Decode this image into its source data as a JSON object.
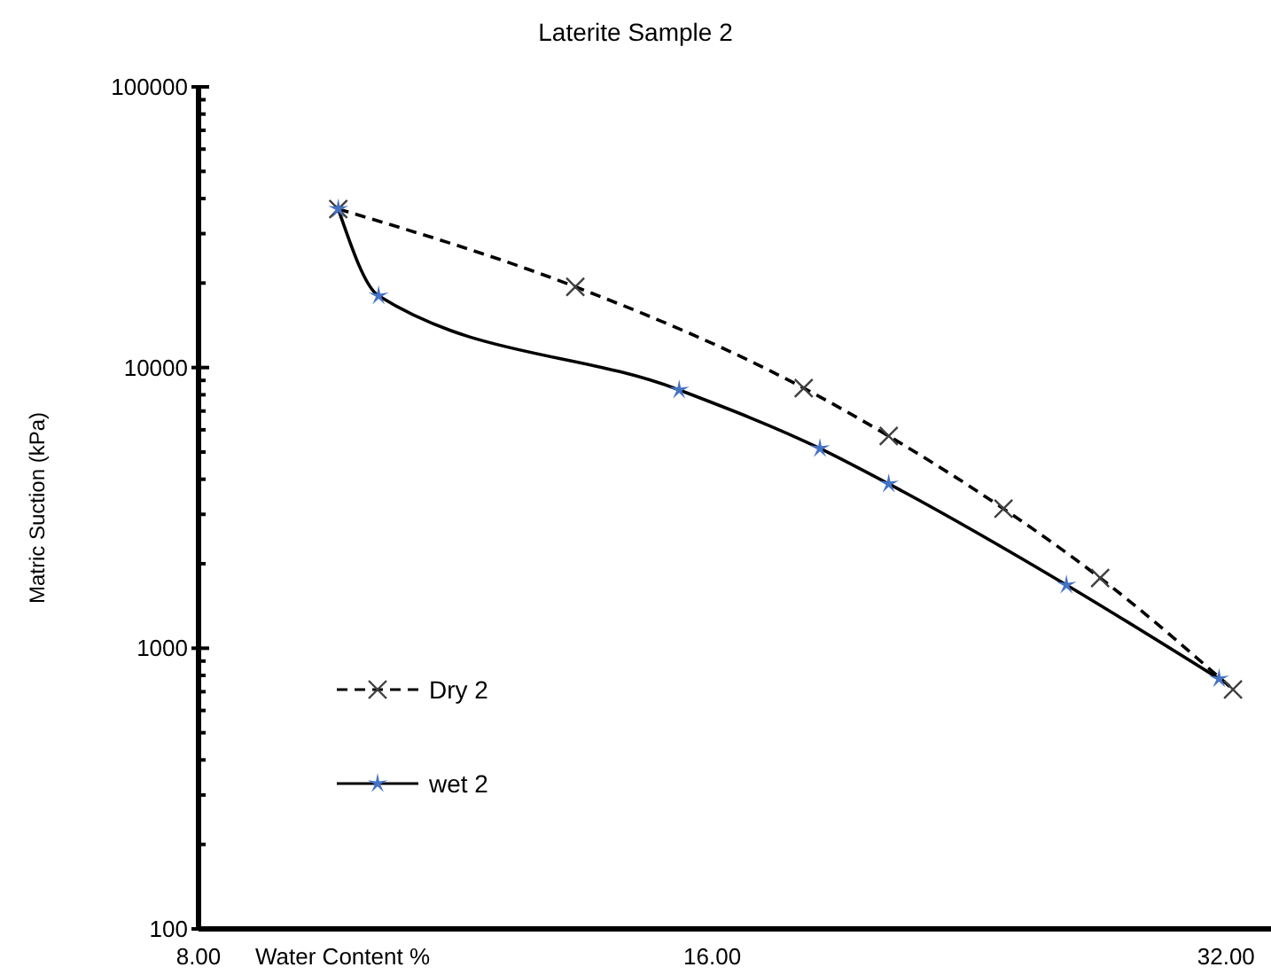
{
  "chart_data": {
    "type": "line",
    "title": "Laterite Sample 2",
    "xlabel": "Water Content %",
    "ylabel": "Matric Suction (kPa)",
    "log": "xy",
    "xlim": [
      8,
      34
    ],
    "xticks": [
      {
        "value": 8,
        "label": "8.00"
      },
      {
        "value": 16,
        "label": "16.00"
      },
      {
        "value": 32,
        "label": "32.00"
      }
    ],
    "ylim": [
      100,
      100000
    ],
    "yticks": [
      100,
      {
        "value": 200,
        "label": null
      },
      {
        "value": 300,
        "label": null
      },
      {
        "value": 400,
        "label": null
      },
      {
        "value": 500,
        "label": null
      },
      {
        "value": 600,
        "label": null
      },
      {
        "value": 700,
        "label": null
      },
      {
        "value": 800,
        "label": null
      },
      {
        "value": 900,
        "label": null
      },
      1000,
      {
        "value": 2000,
        "label": null
      },
      {
        "value": 3000,
        "label": null
      },
      {
        "value": 4000,
        "label": null
      },
      {
        "value": 5000,
        "label": null
      },
      {
        "value": 6000,
        "label": null
      },
      {
        "value": 7000,
        "label": null
      },
      {
        "value": 8000,
        "label": null
      },
      {
        "value": 9000,
        "label": null
      },
      10000,
      {
        "value": 20000,
        "label": null
      },
      {
        "value": 30000,
        "label": null
      },
      {
        "value": 40000,
        "label": null
      },
      {
        "value": 50000,
        "label": null
      },
      {
        "value": 60000,
        "label": null
      },
      {
        "value": 70000,
        "label": null
      },
      {
        "value": 80000,
        "label": null
      },
      {
        "value": 90000,
        "label": null
      },
      100000
    ],
    "grid": false,
    "legend": "bottom left",
    "series": [
      {
        "name": "Dry 2",
        "color": "#404040",
        "marker": "cross",
        "line_style": "dashed",
        "x": [
          9.66,
          13.3,
          18.1,
          20.3,
          23.7,
          27.0,
          32.3
        ],
        "values": [
          36700,
          19400,
          8450,
          5700,
          3140,
          1780,
          713
        ]
      },
      {
        "name": "wet 2",
        "color": "#4472c4",
        "marker": "star",
        "line_style": "solid",
        "x": [
          9.66,
          10.2,
          15.3,
          18.5,
          20.3,
          25.8,
          31.7
        ],
        "values": [
          36700,
          18000,
          8320,
          5150,
          3850,
          1680,
          778
        ]
      }
    ]
  }
}
